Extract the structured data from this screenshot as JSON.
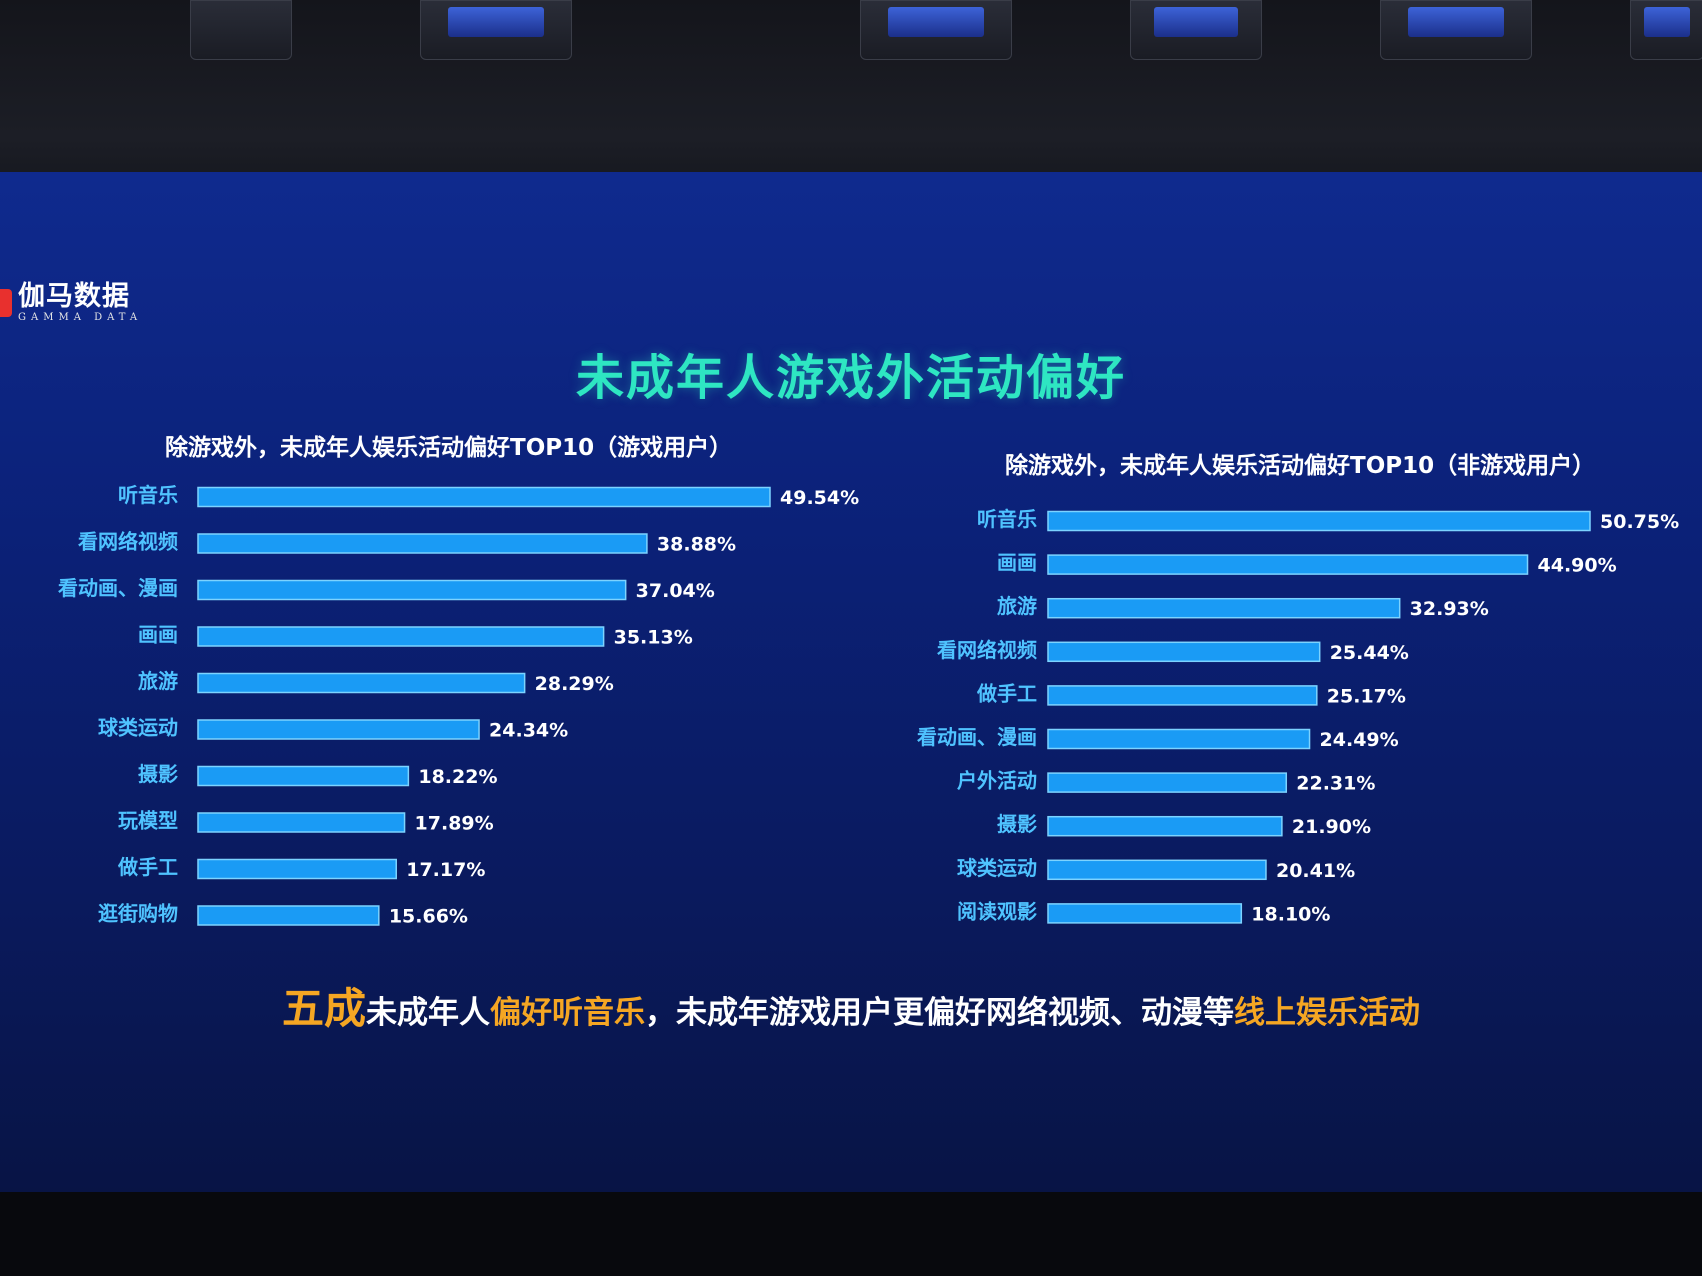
{
  "brand": {
    "name_cn": "伽马数据",
    "name_en": "GAMMA DATA"
  },
  "main_title": "未成年人游戏外活动偏好",
  "colors": {
    "bar": "#1a9bf5",
    "bar_edge": "#7cd3ff",
    "title": "#2ee6c2",
    "highlight": "#f5a623",
    "label": "#4fc3ff"
  },
  "chart_data": [
    {
      "type": "bar",
      "orientation": "horizontal",
      "title": "除游戏外，未成年人娱乐活动偏好TOP10（游戏用户）",
      "categories": [
        "听音乐",
        "看网络视频",
        "看动画、漫画",
        "画画",
        "旅游",
        "球类运动",
        "摄影",
        "玩模型",
        "做手工",
        "逛街购物"
      ],
      "values": [
        49.54,
        38.88,
        37.04,
        35.13,
        28.29,
        24.34,
        18.22,
        17.89,
        17.17,
        15.66
      ],
      "value_labels": [
        "49.54%",
        "38.88%",
        "37.04%",
        "35.13%",
        "28.29%",
        "24.34%",
        "18.22%",
        "17.89%",
        "17.17%",
        "15.66%"
      ],
      "unit": "%",
      "xlim": [
        0,
        49.54
      ]
    },
    {
      "type": "bar",
      "orientation": "horizontal",
      "title": "除游戏外，未成年人娱乐活动偏好TOP10（非游戏用户）",
      "categories": [
        "听音乐",
        "画画",
        "旅游",
        "看网络视频",
        "做手工",
        "看动画、漫画",
        "户外活动",
        "摄影",
        "球类运动",
        "阅读观影"
      ],
      "values": [
        50.75,
        44.9,
        32.93,
        25.44,
        25.17,
        24.49,
        22.31,
        21.9,
        20.41,
        18.1
      ],
      "value_labels": [
        "50.75%",
        "44.90%",
        "32.93%",
        "25.44%",
        "25.17%",
        "24.49%",
        "22.31%",
        "21.90%",
        "20.41%",
        "18.10%"
      ],
      "unit": "%",
      "xlim": [
        0,
        50.75
      ]
    }
  ],
  "footer": {
    "part1": "五成",
    "part2": "未成年人",
    "part3": "偏好听音乐",
    "part4": "，未成年游戏用户更偏好网络视频、动漫等",
    "part5": "线上娱乐活动"
  }
}
